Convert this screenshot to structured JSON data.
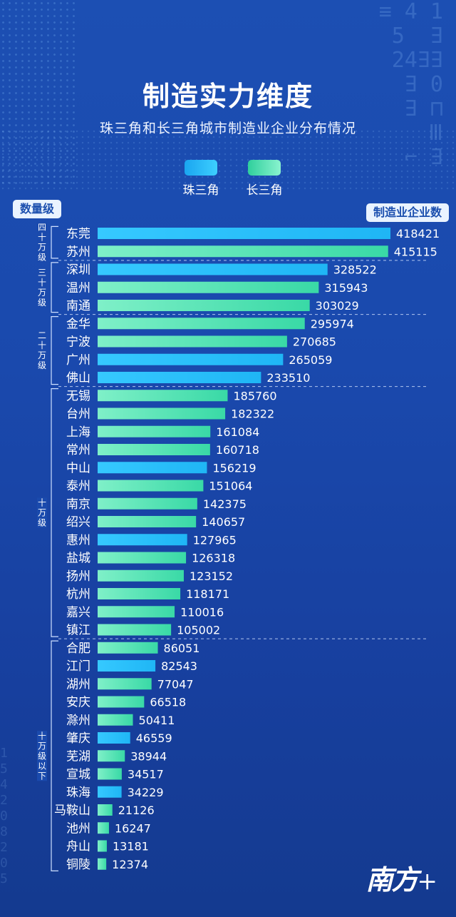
{
  "title": "制造实力维度",
  "subtitle": "珠三角和长三角城市制造业企业分布情况",
  "logo": "南方+",
  "badges": {
    "left": "数量级",
    "right": "制造业企业数"
  },
  "colors": {
    "pearl_river": "#1fb6f5",
    "yangtze": "#39d9a6",
    "pearl_river_light": "#36c9ff",
    "yangtze_light": "#7ff0c8"
  },
  "chart_data": {
    "type": "bar",
    "orientation": "horizontal",
    "title": "制造实力维度",
    "subtitle": "珠三角和长三角城市制造业企业分布情况",
    "ylabel": "数量级",
    "xlabel": "制造业企业数",
    "xlim": [
      0,
      418421
    ],
    "series": [
      {
        "name": "珠三角",
        "color": "#1fb6f5"
      },
      {
        "name": "长三角",
        "color": "#39d9a6"
      }
    ],
    "legend_position": "top-center",
    "groups": [
      {
        "label": [
          "四",
          "十",
          "万",
          "级"
        ],
        "start": 0,
        "end": 1
      },
      {
        "label": [
          "三",
          "十",
          "万",
          "级"
        ],
        "start": 2,
        "end": 4
      },
      {
        "label": [
          "二",
          "十",
          "万",
          "级"
        ],
        "start": 5,
        "end": 8
      },
      {
        "label": [
          "十",
          "万",
          "级"
        ],
        "start": 9,
        "end": 22
      },
      {
        "label": [
          "十",
          "万",
          "级",
          "以",
          "下"
        ],
        "start": 23,
        "end": 35
      }
    ],
    "bars": [
      {
        "city": "东莞",
        "value": 418421,
        "series": "珠三角"
      },
      {
        "city": "苏州",
        "value": 415115,
        "series": "长三角"
      },
      {
        "city": "深圳",
        "value": 328522,
        "series": "珠三角"
      },
      {
        "city": "温州",
        "value": 315943,
        "series": "长三角"
      },
      {
        "city": "南通",
        "value": 303029,
        "series": "长三角"
      },
      {
        "city": "金华",
        "value": 295974,
        "series": "长三角"
      },
      {
        "city": "宁波",
        "value": 270685,
        "series": "长三角"
      },
      {
        "city": "广州",
        "value": 265059,
        "series": "珠三角"
      },
      {
        "city": "佛山",
        "value": 233510,
        "series": "珠三角"
      },
      {
        "city": "无锡",
        "value": 185760,
        "series": "长三角"
      },
      {
        "city": "台州",
        "value": 182322,
        "series": "长三角"
      },
      {
        "city": "上海",
        "value": 161084,
        "series": "长三角"
      },
      {
        "city": "常州",
        "value": 160718,
        "series": "长三角"
      },
      {
        "city": "中山",
        "value": 156219,
        "series": "珠三角"
      },
      {
        "city": "泰州",
        "value": 151064,
        "series": "长三角"
      },
      {
        "city": "南京",
        "value": 142375,
        "series": "长三角"
      },
      {
        "city": "绍兴",
        "value": 140657,
        "series": "长三角"
      },
      {
        "city": "惠州",
        "value": 127965,
        "series": "珠三角"
      },
      {
        "city": "盐城",
        "value": 126318,
        "series": "长三角"
      },
      {
        "city": "扬州",
        "value": 123152,
        "series": "长三角"
      },
      {
        "city": "杭州",
        "value": 118171,
        "series": "长三角"
      },
      {
        "city": "嘉兴",
        "value": 110016,
        "series": "长三角"
      },
      {
        "city": "镇江",
        "value": 105002,
        "series": "长三角"
      },
      {
        "city": "合肥",
        "value": 86051,
        "series": "长三角"
      },
      {
        "city": "江门",
        "value": 82543,
        "series": "珠三角"
      },
      {
        "city": "湖州",
        "value": 77047,
        "series": "长三角"
      },
      {
        "city": "安庆",
        "value": 66518,
        "series": "长三角"
      },
      {
        "city": "滁州",
        "value": 50411,
        "series": "长三角"
      },
      {
        "city": "肇庆",
        "value": 46559,
        "series": "珠三角"
      },
      {
        "city": "芜湖",
        "value": 38944,
        "series": "长三角"
      },
      {
        "city": "宣城",
        "value": 34517,
        "series": "长三角"
      },
      {
        "city": "珠海",
        "value": 34229,
        "series": "珠三角"
      },
      {
        "city": "马鞍山",
        "value": 21126,
        "series": "长三角"
      },
      {
        "city": "池州",
        "value": 16247,
        "series": "长三角"
      },
      {
        "city": "舟山",
        "value": 13181,
        "series": "长三角"
      },
      {
        "city": "铜陵",
        "value": 12374,
        "series": "长三角"
      }
    ]
  }
}
